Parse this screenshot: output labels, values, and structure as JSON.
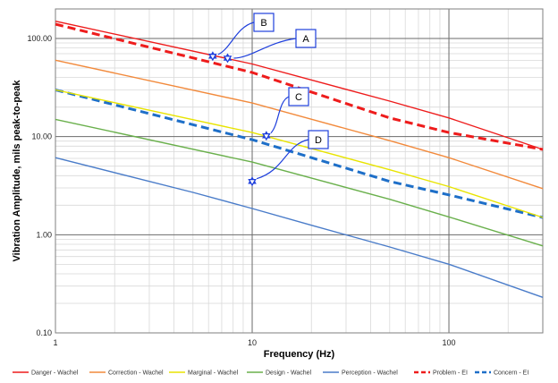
{
  "chart_data": {
    "type": "line",
    "xlabel": "Frequency (Hz)",
    "ylabel": "Vibration Amplitude, mils peak-to-peak",
    "xscale": "log",
    "yscale": "log",
    "xlim": [
      1,
      300
    ],
    "ylim": [
      0.1,
      200
    ],
    "x_major_ticks": [
      {
        "v": 1,
        "label": "1"
      },
      {
        "v": 10,
        "label": "10"
      },
      {
        "v": 100,
        "label": "100"
      }
    ],
    "y_major_ticks": [
      {
        "v": 0.1,
        "label": "0.10"
      },
      {
        "v": 1,
        "label": "1.00"
      },
      {
        "v": 10,
        "label": "10.00"
      },
      {
        "v": 100,
        "label": "100.00"
      }
    ],
    "grid": true,
    "legend_position": "bottom",
    "series": [
      {
        "name": "Danger - Wachel",
        "color": "#ee1c1c",
        "dash": "solid",
        "points": [
          [
            1,
            150
          ],
          [
            10,
            55
          ],
          [
            50,
            23
          ],
          [
            100,
            15.5
          ],
          [
            300,
            7.4
          ]
        ]
      },
      {
        "name": "Correction - Wachel",
        "color": "#f28a3c",
        "dash": "solid",
        "points": [
          [
            1,
            60
          ],
          [
            10,
            22
          ],
          [
            50,
            9.1
          ],
          [
            100,
            6.1
          ],
          [
            300,
            2.95
          ]
        ]
      },
      {
        "name": "Marginal - Wachel",
        "color": "#e8e400",
        "dash": "solid",
        "points": [
          [
            1,
            30
          ],
          [
            10,
            11
          ],
          [
            50,
            4.6
          ],
          [
            100,
            3.1
          ],
          [
            300,
            1.5
          ]
        ]
      },
      {
        "name": "Design - Wachel",
        "color": "#6ab04c",
        "dash": "solid",
        "points": [
          [
            1,
            15
          ],
          [
            10,
            5.5
          ],
          [
            50,
            2.3
          ],
          [
            100,
            1.52
          ],
          [
            300,
            0.77
          ]
        ]
      },
      {
        "name": "Perception - Wachel",
        "color": "#4a7cc9",
        "dash": "solid",
        "points": [
          [
            1,
            6.1
          ],
          [
            5,
            2.7
          ],
          [
            10,
            1.85
          ],
          [
            20,
            1.25
          ],
          [
            50,
            0.75
          ],
          [
            100,
            0.5
          ],
          [
            300,
            0.23
          ]
        ]
      },
      {
        "name": "Problem - EI",
        "color": "#ee1c1c",
        "dash": "dashed",
        "points": [
          [
            1,
            140
          ],
          [
            10,
            45
          ],
          [
            50,
            15.5
          ],
          [
            100,
            11
          ],
          [
            300,
            7.4
          ]
        ]
      },
      {
        "name": "Concern - EI",
        "color": "#1e6fc8",
        "dash": "dashed",
        "points": [
          [
            1,
            30
          ],
          [
            10,
            9.3
          ],
          [
            50,
            3.5
          ],
          [
            100,
            2.55
          ],
          [
            300,
            1.5
          ]
        ]
      }
    ],
    "markers": [
      {
        "label": "A",
        "x": 7.5,
        "y": 63
      },
      {
        "label": "B",
        "x": 6.3,
        "y": 66
      },
      {
        "label": "C",
        "x": 11.8,
        "y": 10.2
      },
      {
        "label": "D",
        "x": 10,
        "y": 3.5
      }
    ],
    "marker_color": "#1e3fdc"
  }
}
